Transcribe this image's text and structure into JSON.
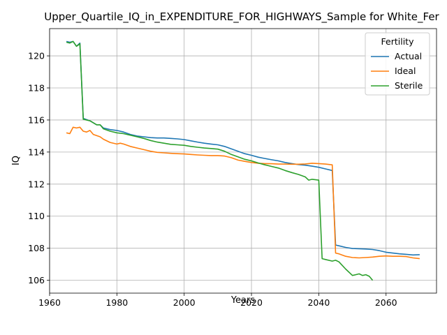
{
  "chart_data": {
    "type": "line",
    "title": "Upper_Quartile_IQ_in_EXPENDITURE_FOR_HIGHWAYS_Sample for White_Fer",
    "xlabel": "Years",
    "ylabel": "IQ",
    "xlim": [
      1960,
      2075
    ],
    "ylim": [
      105.2,
      121.7
    ],
    "xticks": [
      1960,
      1980,
      2000,
      2020,
      2040,
      2060
    ],
    "yticks": [
      106,
      108,
      110,
      112,
      114,
      116,
      118,
      120
    ],
    "grid": true,
    "legend": {
      "title": "Fertility",
      "placement": "top-right"
    },
    "series": [
      {
        "name": "Actual",
        "color": "#1f77b4",
        "x": [
          1965,
          1966,
          1967,
          1968,
          1969,
          1970,
          1972,
          1974,
          1975,
          1976,
          1978,
          1980,
          1982,
          1984,
          1986,
          1988,
          1990,
          1992,
          1994,
          1996,
          1998,
          2000,
          2002,
          2004,
          2006,
          2008,
          2010,
          2012,
          2014,
          2016,
          2018,
          2020,
          2022,
          2024,
          2026,
          2028,
          2030,
          2032,
          2034,
          2036,
          2038,
          2040,
          2042,
          2044,
          2045,
          2046,
          2048,
          2050,
          2052,
          2054,
          2056,
          2058,
          2060,
          2062,
          2064,
          2066,
          2068,
          2070
        ],
        "values": [
          120.9,
          120.85,
          120.9,
          120.6,
          120.8,
          116.1,
          115.95,
          115.7,
          115.7,
          115.5,
          115.4,
          115.35,
          115.25,
          115.1,
          115.0,
          114.95,
          114.9,
          114.88,
          114.88,
          114.85,
          114.82,
          114.78,
          114.7,
          114.62,
          114.55,
          114.5,
          114.45,
          114.35,
          114.2,
          114.05,
          113.9,
          113.8,
          113.68,
          113.6,
          113.52,
          113.45,
          113.35,
          113.28,
          113.22,
          113.18,
          113.12,
          113.05,
          112.95,
          112.85,
          108.2,
          108.15,
          108.05,
          107.98,
          107.97,
          107.95,
          107.92,
          107.85,
          107.75,
          107.7,
          107.65,
          107.62,
          107.58,
          107.6
        ]
      },
      {
        "name": "Ideal",
        "color": "#ff7f0e",
        "x": [
          1965,
          1966,
          1967,
          1968,
          1969,
          1970,
          1971,
          1972,
          1973,
          1975,
          1976,
          1978,
          1980,
          1981,
          1982,
          1984,
          1986,
          1988,
          1990,
          1992,
          1994,
          1996,
          1998,
          2000,
          2002,
          2004,
          2006,
          2008,
          2010,
          2012,
          2014,
          2016,
          2018,
          2020,
          2022,
          2024,
          2026,
          2028,
          2030,
          2032,
          2034,
          2036,
          2038,
          2040,
          2042,
          2044,
          2045,
          2046,
          2048,
          2050,
          2052,
          2054,
          2056,
          2058,
          2060,
          2062,
          2064,
          2066,
          2068,
          2070
        ],
        "values": [
          115.2,
          115.15,
          115.55,
          115.5,
          115.55,
          115.3,
          115.25,
          115.35,
          115.1,
          114.95,
          114.8,
          114.6,
          114.5,
          114.55,
          114.5,
          114.35,
          114.25,
          114.15,
          114.05,
          113.98,
          113.95,
          113.92,
          113.9,
          113.88,
          113.85,
          113.82,
          113.8,
          113.78,
          113.78,
          113.75,
          113.65,
          113.5,
          113.42,
          113.35,
          113.3,
          113.28,
          113.27,
          113.25,
          113.25,
          113.24,
          113.24,
          113.26,
          113.3,
          113.28,
          113.25,
          113.2,
          107.7,
          107.65,
          107.5,
          107.42,
          107.4,
          107.42,
          107.45,
          107.5,
          107.52,
          107.5,
          107.5,
          107.48,
          107.4,
          107.35
        ]
      },
      {
        "name": "Sterile",
        "color": "#2ca02c",
        "x": [
          1965,
          1966,
          1967,
          1968,
          1969,
          1970,
          1972,
          1974,
          1975,
          1976,
          1978,
          1980,
          1982,
          1984,
          1986,
          1988,
          1990,
          1992,
          1994,
          1996,
          1998,
          2000,
          2002,
          2004,
          2006,
          2008,
          2010,
          2012,
          2014,
          2016,
          2018,
          2020,
          2022,
          2024,
          2026,
          2028,
          2030,
          2032,
          2034,
          2036,
          2037,
          2038,
          2040,
          2041,
          2042,
          2044,
          2045,
          2046,
          2048,
          2050,
          2052,
          2053,
          2054,
          2055,
          2056
        ],
        "values": [
          120.85,
          120.8,
          120.9,
          120.6,
          120.75,
          116.05,
          115.95,
          115.7,
          115.7,
          115.45,
          115.3,
          115.2,
          115.15,
          115.05,
          114.95,
          114.85,
          114.72,
          114.62,
          114.55,
          114.48,
          114.45,
          114.42,
          114.35,
          114.3,
          114.25,
          114.22,
          114.18,
          114.05,
          113.85,
          113.7,
          113.55,
          113.45,
          113.32,
          113.2,
          113.1,
          113.0,
          112.85,
          112.72,
          112.6,
          112.45,
          112.25,
          112.3,
          112.25,
          107.35,
          107.3,
          107.2,
          107.25,
          107.15,
          106.7,
          106.3,
          106.4,
          106.3,
          106.35,
          106.25,
          106.0
        ]
      }
    ]
  }
}
